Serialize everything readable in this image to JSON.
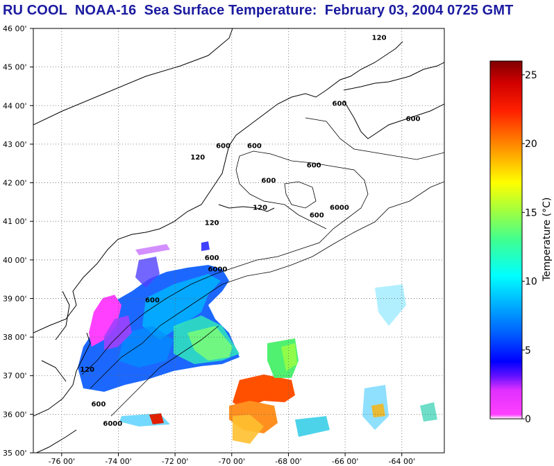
{
  "title": "RU COOL  NOAA-16  Sea Surface Temperature:  February 03, 2004 0725 GMT",
  "map": {
    "lon_range": [
      -77,
      -62.5
    ],
    "lat_range": [
      35,
      46
    ],
    "lon_ticks": [
      "-76 00'",
      "-74 00'",
      "-72 00'",
      "-70 00'",
      "-68 00'",
      "-66 00'",
      "-64 00'"
    ],
    "lon_tick_values": [
      -76,
      -74,
      -72,
      -70,
      -68,
      -66,
      -64
    ],
    "lat_ticks": [
      "46 00'",
      "45 00'",
      "44 00'",
      "43 00'",
      "42 00'",
      "41 00'",
      "40 00'",
      "39 00'",
      "38 00'",
      "37 00'",
      "36 00'",
      "35 00'"
    ],
    "lat_tick_values": [
      46,
      45,
      44,
      43,
      42,
      41,
      40,
      39,
      38,
      37,
      36,
      35
    ],
    "grid": true,
    "contour_labels": [
      {
        "text": "120",
        "lon": -64.8,
        "lat": 45.7
      },
      {
        "text": "600",
        "lon": -66.2,
        "lat": 44.0
      },
      {
        "text": "600",
        "lon": -63.6,
        "lat": 43.6
      },
      {
        "text": "600",
        "lon": -70.3,
        "lat": 42.9
      },
      {
        "text": "600",
        "lon": -69.2,
        "lat": 42.9
      },
      {
        "text": "120",
        "lon": -71.2,
        "lat": 42.6
      },
      {
        "text": "600",
        "lon": -67.1,
        "lat": 42.4
      },
      {
        "text": "600",
        "lon": -68.7,
        "lat": 42.0
      },
      {
        "text": "120",
        "lon": -69.0,
        "lat": 41.3
      },
      {
        "text": "600",
        "lon": -67.0,
        "lat": 41.1
      },
      {
        "text": "6000",
        "lon": -66.2,
        "lat": 41.3
      },
      {
        "text": "120",
        "lon": -70.7,
        "lat": 40.9
      },
      {
        "text": "600",
        "lon": -70.7,
        "lat": 40.0
      },
      {
        "text": "6000",
        "lon": -70.5,
        "lat": 39.7
      },
      {
        "text": "600",
        "lon": -72.8,
        "lat": 38.9
      },
      {
        "text": "120",
        "lon": -75.1,
        "lat": 37.1
      },
      {
        "text": "600",
        "lon": -74.7,
        "lat": 36.2
      },
      {
        "text": "6000",
        "lon": -74.2,
        "lat": 35.7
      }
    ]
  },
  "colorbar": {
    "label": "Temperature (°C)",
    "min": 0,
    "max": 26,
    "ticks": [
      "25",
      "20",
      "15",
      "10",
      "5",
      "0"
    ],
    "tick_values": [
      25,
      20,
      15,
      10,
      5,
      0
    ],
    "colors": [
      "#ffffff",
      "#ff40ff",
      "#c020ff",
      "#0000ff",
      "#0080ff",
      "#00ffff",
      "#40ff80",
      "#ffff00",
      "#ff8000",
      "#ff0000",
      "#800000"
    ]
  }
}
